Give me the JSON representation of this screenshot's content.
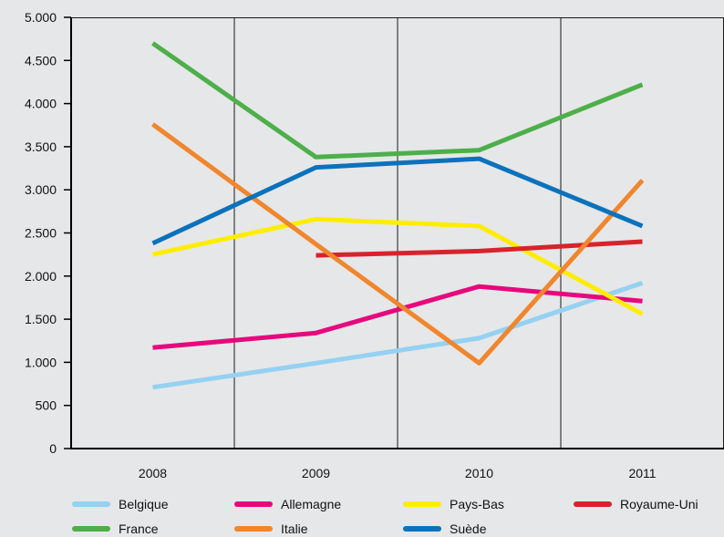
{
  "chart_data": {
    "type": "line",
    "categories": [
      "2008",
      "2009",
      "2010",
      "2011"
    ],
    "ylim": [
      0,
      5000
    ],
    "yticks": [
      0,
      500,
      1000,
      1500,
      2000,
      2500,
      3000,
      3500,
      4000,
      4500,
      5000
    ],
    "ytick_labels": [
      "0",
      "500",
      "1.000",
      "1.500",
      "2.000",
      "2.500",
      "3.000",
      "3.500",
      "4.000",
      "4.500",
      "5.000"
    ],
    "grid": "vertical",
    "legend": "bottom",
    "series": [
      {
        "name": "Belgique",
        "color": "#94d1f2",
        "values": [
          710,
          990,
          1280,
          1920
        ]
      },
      {
        "name": "Allemagne",
        "color": "#e6097d",
        "values": [
          1170,
          1340,
          1880,
          1710
        ]
      },
      {
        "name": "Pays-Bas",
        "color": "#ffed00",
        "values": [
          2250,
          2660,
          2580,
          1560
        ]
      },
      {
        "name": "Royaume-Uni",
        "color": "#d7232c",
        "values": [
          null,
          2240,
          2290,
          2400
        ]
      },
      {
        "name": "France",
        "color": "#4daf4a",
        "values": [
          4700,
          3380,
          3460,
          4220
        ]
      },
      {
        "name": "Italie",
        "color": "#f0862d",
        "values": [
          3760,
          2370,
          990,
          3110
        ]
      },
      {
        "name": "Suède",
        "color": "#0b72bb",
        "values": [
          2380,
          3260,
          3360,
          2580
        ]
      }
    ]
  }
}
